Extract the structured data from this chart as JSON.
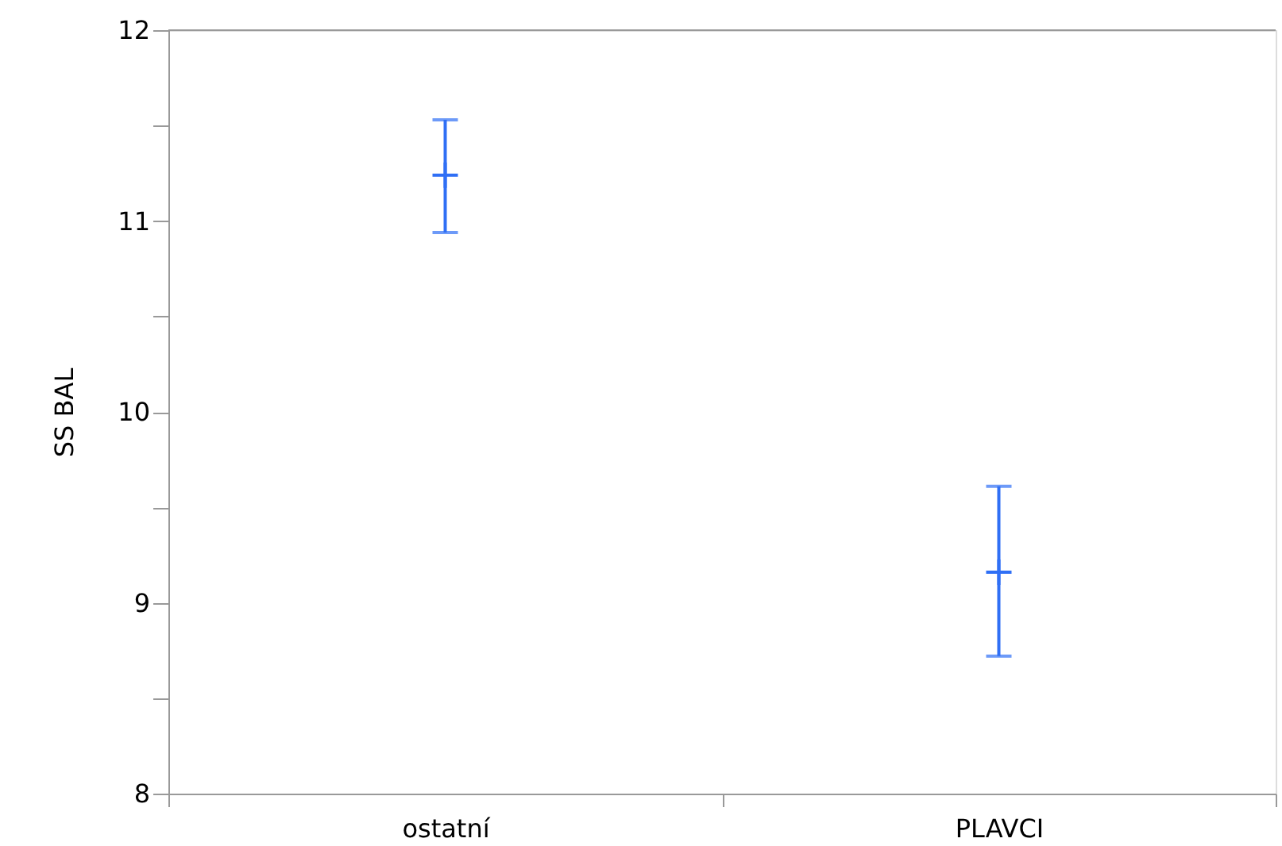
{
  "chart_data": {
    "type": "scatter",
    "ylabel": "SS BAL",
    "categories": [
      "ostatní",
      "PLAVCI"
    ],
    "series": [
      {
        "color": "#2f6ff5",
        "values": [
          11.24,
          9.16
        ],
        "errors": [
          [
            10.94,
            11.53
          ],
          [
            8.72,
            9.61
          ]
        ]
      }
    ],
    "ylim": [
      8,
      12
    ],
    "yticks": [
      8,
      {
        "value": 8.5,
        "label": null
      },
      9,
      {
        "value": 9.5,
        "label": null
      },
      10,
      {
        "value": 10.5,
        "label": null
      },
      11,
      {
        "value": 11.5,
        "label": null
      },
      12
    ],
    "grid": false,
    "marker": "cross"
  }
}
